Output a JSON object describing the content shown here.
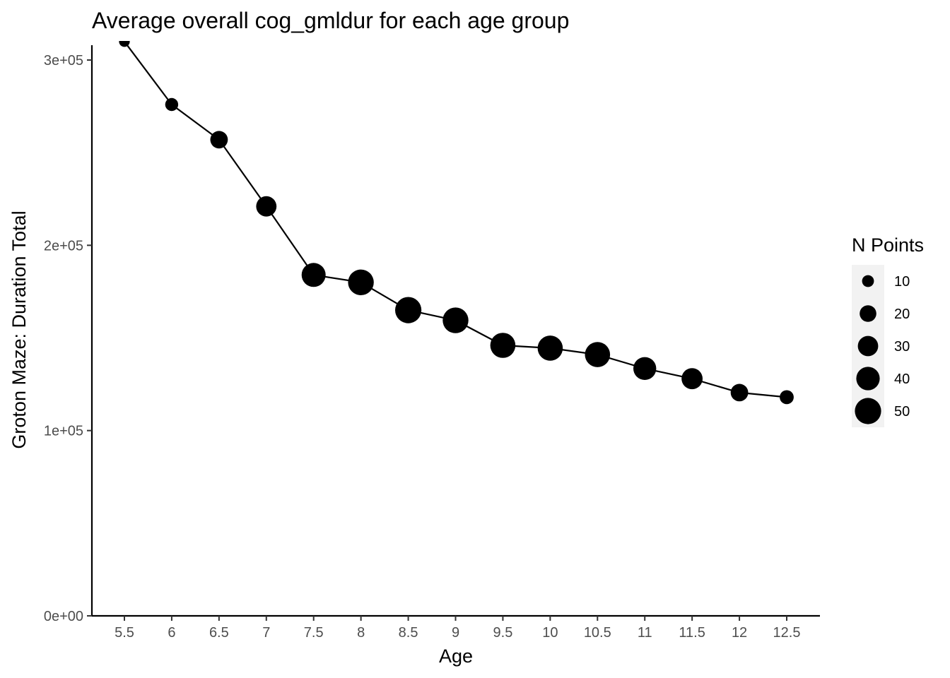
{
  "chart_data": {
    "type": "scatter",
    "title": "Average overall cog_gmldur for each age group",
    "xlabel": "Age",
    "ylabel": "Groton Maze: Duration Total",
    "x": [
      5.5,
      6,
      6.5,
      7,
      7.5,
      8,
      8.5,
      9,
      9.5,
      10,
      10.5,
      11,
      11.5,
      12,
      12.5
    ],
    "x_tick_labels": [
      "5.5",
      "6",
      "6.5",
      "7",
      "7.5",
      "8",
      "8.5",
      "9",
      "9.5",
      "10",
      "10.5",
      "11",
      "11.5",
      "12",
      "12.5"
    ],
    "y": [
      310000,
      276000,
      257000,
      221000,
      184000,
      180000,
      165000,
      159500,
      146000,
      144500,
      141000,
      133500,
      128000,
      120500,
      118000
    ],
    "n_points": [
      8,
      12,
      22,
      30,
      42,
      48,
      50,
      48,
      46,
      46,
      46,
      38,
      32,
      22,
      14
    ],
    "ylim": [
      0,
      308000
    ],
    "y_ticks": [
      0,
      100000,
      200000,
      300000
    ],
    "y_tick_labels": [
      "0e+00",
      "1e+05",
      "2e+05",
      "3e+05"
    ],
    "grid": false,
    "line_connected": true,
    "legend": {
      "title": "N Points",
      "placement": "right",
      "values": [
        10,
        20,
        30,
        40,
        50
      ],
      "labels": [
        "10",
        "20",
        "30",
        "40",
        "50"
      ]
    },
    "colors": {
      "marks": "#000000",
      "legend_bg": "#f2f2f2"
    }
  }
}
